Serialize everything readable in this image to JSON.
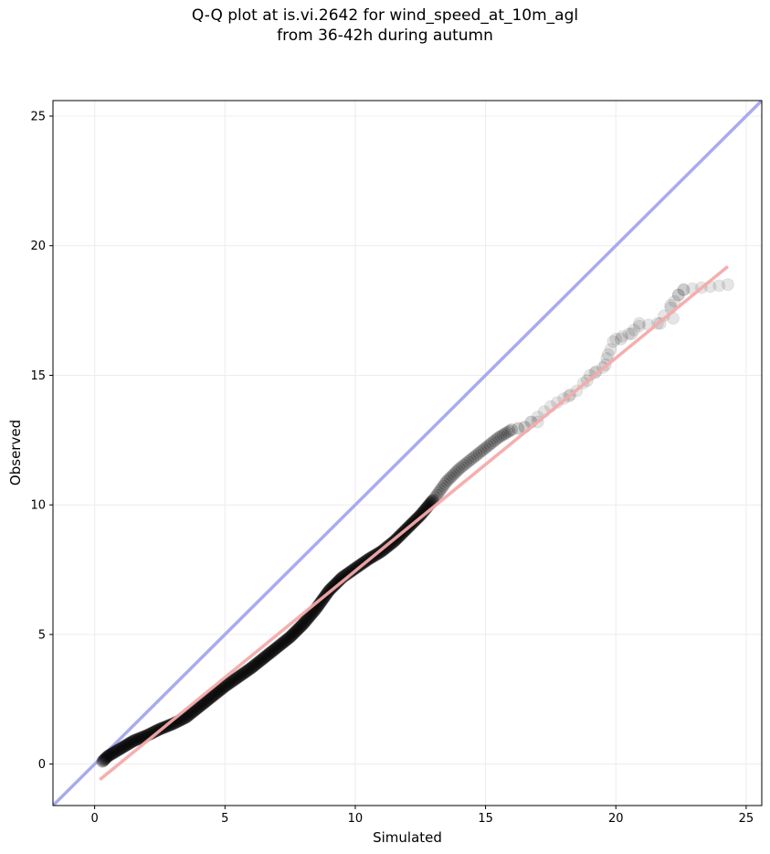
{
  "chart_data": {
    "type": "scatter",
    "title_line1": "Q-Q plot at is.vi.2642 for wind_speed_at_10m_agl",
    "title_line2": "from 36-42h during autumn",
    "xlabel": "Simulated",
    "ylabel": "Observed",
    "xlim": [
      -1.6,
      25.6
    ],
    "ylim": [
      -1.6,
      25.6
    ],
    "xticks": [
      0,
      5,
      10,
      15,
      20,
      25
    ],
    "yticks": [
      0,
      5,
      10,
      15,
      20,
      25
    ],
    "grid": true,
    "identity_line": {
      "from": [
        -1.6,
        -1.6
      ],
      "to": [
        25.6,
        25.6
      ],
      "color": "#aaaaf0"
    },
    "fit_line": {
      "from": [
        0.2,
        -0.6
      ],
      "to": [
        24.3,
        19.2
      ],
      "color": "#f5aaaa"
    },
    "colors": {
      "points": "#000000",
      "identity": "#aaaaf0",
      "fit": "#f5aaaa"
    },
    "quantile_curve": [
      [
        0.3,
        0.1
      ],
      [
        0.5,
        0.3
      ],
      [
        1.0,
        0.6
      ],
      [
        1.5,
        0.9
      ],
      [
        2.0,
        1.1
      ],
      [
        2.5,
        1.35
      ],
      [
        3.0,
        1.55
      ],
      [
        3.5,
        1.8
      ],
      [
        4.0,
        2.2
      ],
      [
        4.5,
        2.6
      ],
      [
        5.0,
        3.0
      ],
      [
        5.5,
        3.35
      ],
      [
        6.0,
        3.7
      ],
      [
        6.5,
        4.1
      ],
      [
        7.0,
        4.5
      ],
      [
        7.5,
        4.9
      ],
      [
        8.0,
        5.4
      ],
      [
        8.5,
        6.0
      ],
      [
        9.0,
        6.7
      ],
      [
        9.5,
        7.2
      ],
      [
        10.0,
        7.55
      ],
      [
        10.5,
        7.9
      ],
      [
        11.0,
        8.2
      ],
      [
        11.5,
        8.6
      ],
      [
        12.0,
        9.1
      ],
      [
        12.5,
        9.6
      ],
      [
        13.0,
        10.2
      ],
      [
        13.5,
        10.9
      ],
      [
        14.0,
        11.4
      ],
      [
        14.5,
        11.8
      ],
      [
        15.0,
        12.2
      ],
      [
        15.5,
        12.6
      ],
      [
        16.0,
        12.9
      ],
      [
        16.5,
        13.0
      ],
      [
        17.0,
        13.4
      ],
      [
        17.5,
        13.8
      ],
      [
        18.0,
        14.1
      ],
      [
        18.5,
        14.4
      ],
      [
        19.0,
        15.0
      ],
      [
        19.5,
        15.3
      ],
      [
        19.8,
        16.0
      ],
      [
        20.0,
        16.4
      ],
      [
        20.5,
        16.6
      ],
      [
        20.9,
        16.9
      ],
      [
        21.6,
        17.0
      ],
      [
        22.1,
        17.6
      ],
      [
        22.4,
        18.1
      ],
      [
        22.6,
        18.3
      ],
      [
        24.3,
        18.5
      ]
    ],
    "tail_points": [
      [
        17.0,
        13.2
      ],
      [
        18.2,
        14.2
      ],
      [
        18.9,
        14.8
      ],
      [
        19.2,
        15.1
      ],
      [
        19.6,
        15.4
      ],
      [
        19.7,
        15.8
      ],
      [
        19.9,
        16.3
      ],
      [
        20.2,
        16.4
      ],
      [
        20.6,
        16.6
      ],
      [
        20.9,
        17.0
      ],
      [
        21.7,
        17.0
      ],
      [
        22.1,
        17.7
      ],
      [
        22.2,
        17.2
      ],
      [
        22.4,
        18.1
      ],
      [
        22.6,
        18.3
      ],
      [
        24.3,
        18.5
      ]
    ]
  }
}
